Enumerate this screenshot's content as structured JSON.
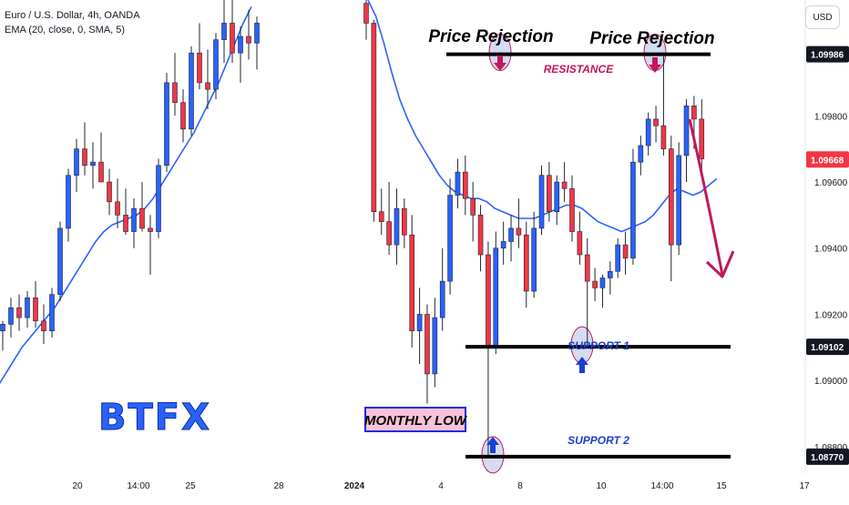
{
  "symbol_title": "Euro / U.S. Dollar, 4h, OANDA",
  "indicator": "EMA (20, close, 0, SMA, 5)",
  "currency_button": "USD",
  "logo_text": "BTFX",
  "colors": {
    "bull": "#2962ff",
    "bear": "#f23645",
    "ema": "#2962ff",
    "annotation": "#c2185b",
    "zone_fill": "#c9d3ee",
    "level_line": "#000000",
    "support_text": "#1a3fd1"
  },
  "chart_data": {
    "type": "candlestick",
    "ylim": [
      1.0872,
      1.1015
    ],
    "price_ticks": [
      "1.09800",
      "1.09600",
      "1.09400",
      "1.09200",
      "1.09000",
      "1.08800"
    ],
    "tagged_levels": [
      {
        "label": "1.09986",
        "value": 1.09986,
        "style": "dark"
      },
      {
        "label": "1.09668",
        "value": 1.09668,
        "style": "red"
      },
      {
        "label": "1.09102",
        "value": 1.09102,
        "style": "dark"
      },
      {
        "label": "1.08770",
        "value": 1.0877,
        "style": "dark"
      }
    ],
    "time_ticks": [
      "20",
      "14:00",
      "25",
      "28",
      "2024",
      "4",
      "8",
      "10",
      "14:00",
      "15",
      "17"
    ],
    "drawn_levels": [
      {
        "name": "RESISTANCE",
        "value": 1.09986
      },
      {
        "name": "SUPPORT 1",
        "value": 1.09102
      },
      {
        "name": "SUPPORT 2",
        "value": 1.0877
      }
    ],
    "annotations": [
      "Price Rejection",
      "Price Rejection",
      "RESISTANCE",
      "SUPPORT 1",
      "SUPPORT 2",
      "MONTHLY LOW"
    ],
    "candles_segment_1": [
      [
        1.0915,
        1.0918,
        1.0909,
        1.0917
      ],
      [
        1.0917,
        1.0925,
        1.0913,
        1.0922
      ],
      [
        1.0922,
        1.0926,
        1.0915,
        1.0919
      ],
      [
        1.0919,
        1.0927,
        1.0916,
        1.0925
      ],
      [
        1.0925,
        1.093,
        1.0916,
        1.0918
      ],
      [
        1.0918,
        1.0923,
        1.0911,
        1.0915
      ],
      [
        1.0915,
        1.0928,
        1.0913,
        1.0926
      ],
      [
        1.0926,
        1.0948,
        1.0924,
        1.0946
      ],
      [
        1.0946,
        1.0964,
        1.0942,
        1.0962
      ],
      [
        1.0962,
        1.0973,
        1.0957,
        1.097
      ],
      [
        1.097,
        1.0978,
        1.0962,
        1.0965
      ],
      [
        1.0965,
        1.0972,
        1.0958,
        1.0966
      ],
      [
        1.0966,
        1.0975,
        1.096,
        1.096
      ],
      [
        1.096,
        1.0964,
        1.095,
        1.0954
      ],
      [
        1.0954,
        1.0961,
        1.0946,
        1.095
      ],
      [
        1.095,
        1.0958,
        1.0944,
        1.0945
      ],
      [
        1.0945,
        1.0955,
        1.094,
        1.0952
      ],
      [
        1.0952,
        1.096,
        1.0945,
        1.0946
      ],
      [
        1.0946,
        1.095,
        1.0932,
        1.0945
      ],
      [
        1.0945,
        1.0967,
        1.0943,
        1.0965
      ],
      [
        1.0965,
        1.0993,
        1.0963,
        1.099
      ],
      [
        1.099,
        1.0999,
        1.098,
        1.0984
      ],
      [
        1.0984,
        1.0988,
        1.0972,
        1.0976
      ],
      [
        1.0976,
        1.1001,
        1.0974,
        1.0999
      ],
      [
        1.0999,
        1.1008,
        1.0988,
        1.099
      ],
      [
        1.099,
        1.1,
        1.0982,
        1.0988
      ],
      [
        1.0988,
        1.1005,
        1.0985,
        1.1003
      ],
      [
        1.1003,
        1.1015,
        1.0996,
        1.1008
      ],
      [
        1.1008,
        1.1015,
        1.0996,
        1.0999
      ],
      [
        1.0999,
        1.1007,
        1.099,
        1.1004
      ],
      [
        1.1004,
        1.1012,
        1.0997,
        1.1002
      ],
      [
        1.1002,
        1.101,
        1.0994,
        1.1008
      ]
    ],
    "candles_segment_2": [
      [
        1.1014,
        1.1018,
        1.1003,
        1.1008
      ],
      [
        1.1008,
        1.1009,
        1.0948,
        1.0951
      ],
      [
        1.0951,
        1.0958,
        1.0944,
        1.0948
      ],
      [
        1.0948,
        1.096,
        1.0938,
        1.0941
      ],
      [
        1.0941,
        1.0958,
        1.0935,
        1.0952
      ],
      [
        1.0952,
        1.0955,
        1.094,
        1.0944
      ],
      [
        1.0944,
        1.095,
        1.091,
        1.0915
      ],
      [
        1.0915,
        1.0928,
        1.0905,
        1.092
      ],
      [
        1.092,
        1.0923,
        1.0893,
        1.0902
      ],
      [
        1.0902,
        1.0925,
        1.0898,
        1.0919
      ],
      [
        1.0919,
        1.094,
        1.0915,
        1.093
      ],
      [
        1.093,
        1.0961,
        1.0926,
        1.0956
      ],
      [
        1.0956,
        1.0967,
        1.0952,
        1.0963
      ],
      [
        1.0963,
        1.0968,
        1.095,
        1.0955
      ],
      [
        1.0955,
        1.096,
        1.0942,
        1.095
      ],
      [
        1.095,
        1.0953,
        1.0933,
        1.0938
      ],
      [
        1.0938,
        1.0942,
        1.0877,
        1.091
      ],
      [
        1.091,
        1.0945,
        1.0908,
        1.094
      ],
      [
        1.094,
        1.0948,
        1.0935,
        1.0942
      ],
      [
        1.0942,
        1.095,
        1.0936,
        1.0946
      ],
      [
        1.0946,
        1.0955,
        1.094,
        1.0944
      ],
      [
        1.0944,
        1.0948,
        1.0922,
        1.0927
      ],
      [
        1.0927,
        1.0951,
        1.0925,
        1.0946
      ],
      [
        1.0946,
        1.0965,
        1.0944,
        1.0962
      ],
      [
        1.0962,
        1.0966,
        1.0948,
        1.0951
      ],
      [
        1.0951,
        1.0962,
        1.0947,
        1.096
      ],
      [
        1.096,
        1.0966,
        1.0954,
        1.0958
      ],
      [
        1.0958,
        1.0962,
        1.0942,
        1.0945
      ],
      [
        1.0945,
        1.0951,
        1.0935,
        1.0938
      ],
      [
        1.0938,
        1.0943,
        1.091,
        1.093
      ],
      [
        1.093,
        1.0934,
        1.0924,
        1.0928
      ],
      [
        1.0928,
        1.0932,
        1.0922,
        1.0931
      ],
      [
        1.0931,
        1.0936,
        1.0926,
        1.0933
      ],
      [
        1.0933,
        1.0943,
        1.0931,
        1.0941
      ],
      [
        1.0941,
        1.0945,
        1.0932,
        1.0937
      ],
      [
        1.0937,
        1.097,
        1.0935,
        1.0966
      ],
      [
        1.0966,
        1.0974,
        1.0962,
        1.0971
      ],
      [
        1.0971,
        1.0981,
        1.0968,
        1.0979
      ],
      [
        1.0979,
        1.0983,
        1.0972,
        1.0977
      ],
      [
        1.0977,
        1.0998,
        1.0968,
        1.097
      ],
      [
        1.097,
        1.0974,
        1.093,
        1.0941
      ],
      [
        1.0941,
        1.0972,
        1.0938,
        1.0968
      ],
      [
        1.0968,
        1.0985,
        1.096,
        1.0983
      ],
      [
        1.0983,
        1.0986,
        1.097,
        1.0979
      ],
      [
        1.0979,
        1.0985,
        1.0962,
        1.0967
      ]
    ],
    "ema_segment_1": [
      1.0898,
      1.0902,
      1.0906,
      1.091,
      1.0913,
      1.0916,
      1.0919,
      1.0922,
      1.0926,
      1.093,
      1.0934,
      1.0938,
      1.0942,
      1.0945,
      1.0947,
      1.0948,
      1.0949,
      1.095,
      1.0952,
      1.0955,
      1.0959,
      1.0963,
      1.0967,
      1.0971,
      1.0975,
      1.098,
      1.0985,
      1.099,
      1.0996,
      1.1002,
      1.1008,
      1.1013
    ],
    "ema_segment_2": [
      1.1015,
      1.101,
      1.1002,
      1.0993,
      1.0985,
      1.0979,
      1.0974,
      1.097,
      1.0966,
      1.0962,
      1.0959,
      1.0957,
      1.0956,
      1.0955,
      1.0955,
      1.0954,
      1.0952,
      1.0951,
      1.095,
      1.0949,
      1.0949,
      1.0949,
      1.095,
      1.0951,
      1.0952,
      1.0953,
      1.0953,
      1.0952,
      1.095,
      1.0948,
      1.0947,
      1.0946,
      1.0945,
      1.0946,
      1.0947,
      1.0948,
      1.095,
      1.0953,
      1.0956,
      1.0958,
      1.0957,
      1.0956,
      1.0957,
      1.0959,
      1.0961
    ]
  }
}
